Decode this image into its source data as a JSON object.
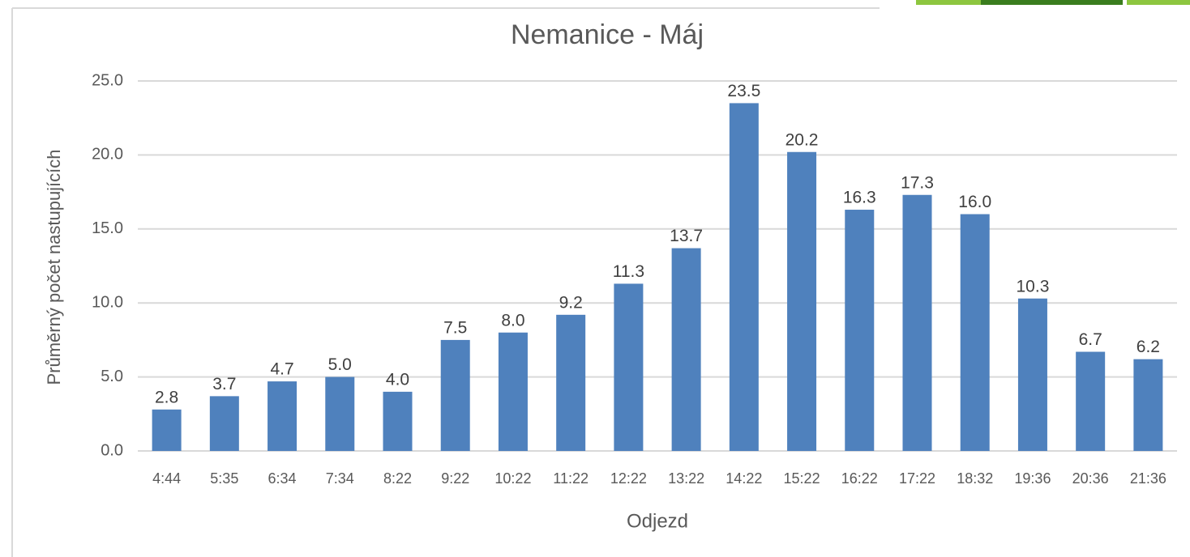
{
  "chart_data": {
    "type": "bar",
    "title": "Nemanice - Máj",
    "x_label": "Odjezd",
    "y_label": "Průměrný počet nastupujících",
    "categories": [
      "4:44",
      "5:35",
      "6:34",
      "7:34",
      "8:22",
      "9:22",
      "10:22",
      "11:22",
      "12:22",
      "13:22",
      "14:22",
      "15:22",
      "16:22",
      "17:22",
      "18:32",
      "19:36",
      "20:36",
      "21:36"
    ],
    "values": [
      2.8,
      3.7,
      4.7,
      5.0,
      4.0,
      7.5,
      8.0,
      9.2,
      11.3,
      13.7,
      23.5,
      20.2,
      16.3,
      17.3,
      16.0,
      10.3,
      6.7,
      6.2
    ],
    "value_labels": [
      "2.8",
      "3.7",
      "4.7",
      "5.0",
      "4.0",
      "7.5",
      "8.0",
      "9.2",
      "11.3",
      "13.7",
      "23.5",
      "20.2",
      "16.3",
      "17.3",
      "16.0",
      "10.3",
      "6.7",
      "6.2"
    ],
    "color": "#4f81bd",
    "ylim": [
      0,
      25
    ],
    "yticks": [
      {
        "value": 0,
        "label": "0.0"
      },
      {
        "value": 5,
        "label": "5.0"
      },
      {
        "value": 10,
        "label": "10.0"
      },
      {
        "value": 15,
        "label": "15.0"
      },
      {
        "value": 20,
        "label": "20.0"
      },
      {
        "value": 25,
        "label": "25.0"
      }
    ],
    "grid": true
  }
}
